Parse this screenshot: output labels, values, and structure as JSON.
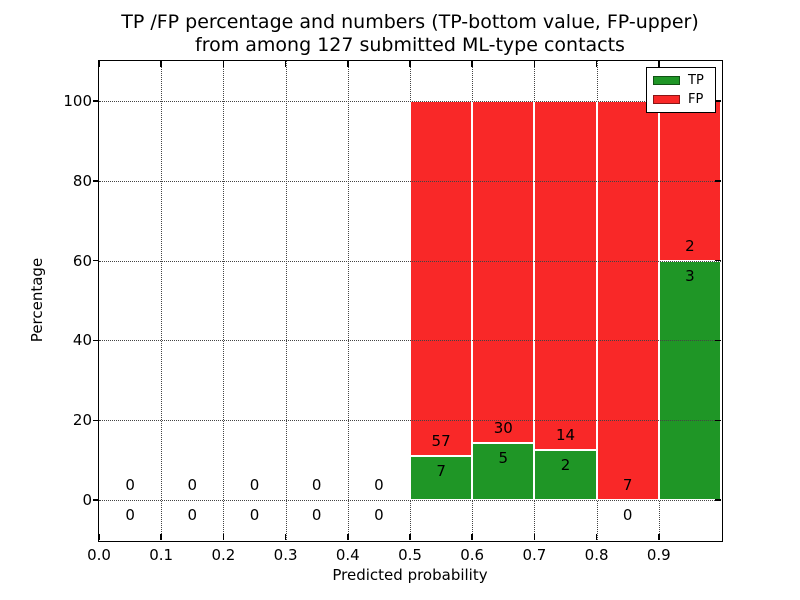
{
  "chart_data": {
    "type": "bar",
    "variant": "stacked-percentage",
    "title_lines": [
      "TP /FP percentage and numbers (TP-bottom value, FP-upper)",
      "from among 127 submitted ML-type contacts"
    ],
    "xlabel": "Predicted probability",
    "ylabel": "Percentage",
    "xlim": [
      0.0,
      1.0
    ],
    "ylim": [
      -10,
      110
    ],
    "xticks": {
      "values": [
        0.0,
        0.1,
        0.2,
        0.3,
        0.4,
        0.5,
        0.6,
        0.7,
        0.8,
        0.9
      ],
      "labels": [
        "0.0",
        "0.1",
        "0.2",
        "0.3",
        "0.4",
        "0.5",
        "0.6",
        "0.7",
        "0.8",
        "0.9"
      ]
    },
    "yticks": {
      "values": [
        0,
        20,
        40,
        60,
        80,
        100
      ],
      "labels": [
        "0",
        "20",
        "40",
        "60",
        "80",
        "100"
      ]
    },
    "grid": "dotted, both axes",
    "total_contacts": 127,
    "label_rule": "TP count below boundary, FP count above boundary",
    "legend": {
      "position": "upper right",
      "entries": [
        {
          "label": "TP",
          "color": "#1f9626"
        },
        {
          "label": "FP",
          "color": "#f92828"
        }
      ]
    },
    "bins": [
      {
        "x0": 0.0,
        "x1": 0.1,
        "tp": 0,
        "fp": 0,
        "tp_pct": 0,
        "fp_pct": 0
      },
      {
        "x0": 0.1,
        "x1": 0.2,
        "tp": 0,
        "fp": 0,
        "tp_pct": 0,
        "fp_pct": 0
      },
      {
        "x0": 0.2,
        "x1": 0.3,
        "tp": 0,
        "fp": 0,
        "tp_pct": 0,
        "fp_pct": 0
      },
      {
        "x0": 0.3,
        "x1": 0.4,
        "tp": 0,
        "fp": 0,
        "tp_pct": 0,
        "fp_pct": 0
      },
      {
        "x0": 0.4,
        "x1": 0.5,
        "tp": 0,
        "fp": 0,
        "tp_pct": 0,
        "fp_pct": 0
      },
      {
        "x0": 0.5,
        "x1": 0.6,
        "tp": 7,
        "fp": 57,
        "tp_pct": 10.9,
        "fp_pct": 89.1
      },
      {
        "x0": 0.6,
        "x1": 0.7,
        "tp": 5,
        "fp": 30,
        "tp_pct": 14.3,
        "fp_pct": 85.7
      },
      {
        "x0": 0.7,
        "x1": 0.8,
        "tp": 2,
        "fp": 14,
        "tp_pct": 12.5,
        "fp_pct": 87.5
      },
      {
        "x0": 0.8,
        "x1": 0.9,
        "tp": 0,
        "fp": 7,
        "tp_pct": 0,
        "fp_pct": 100
      },
      {
        "x0": 0.9,
        "x1": 1.0,
        "tp": 3,
        "fp": 2,
        "tp_pct": 60,
        "fp_pct": 40
      }
    ]
  }
}
